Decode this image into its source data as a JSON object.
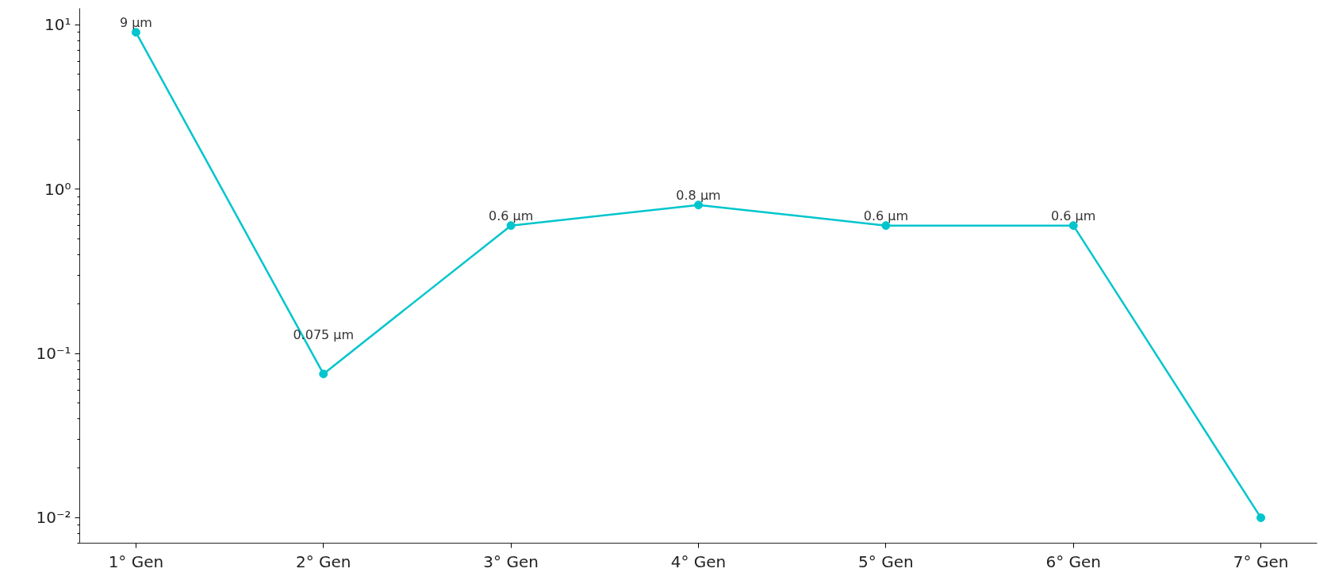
{
  "chart_data": {
    "type": "line",
    "categories": [
      "1° Gen",
      "2° Gen",
      "3° Gen",
      "4° Gen",
      "5° Gen",
      "6° Gen",
      "7° Gen"
    ],
    "series": [
      {
        "color": "#00c5cd",
        "values": [
          9,
          0.075,
          0.6,
          0.8,
          0.6,
          0.6,
          0.01
        ],
        "value_labels": [
          "9 µm",
          "0.075 µm",
          "0.6 µm",
          "0.8 µm",
          "0.6 µm",
          "0.6 µm",
          null
        ]
      }
    ],
    "log": "y",
    "ylim": [
      0.007,
      12.6
    ],
    "yticks": [
      {
        "value": 0.01,
        "label": "10⁻²"
      },
      {
        "value": 0.1,
        "label": "10⁻¹"
      },
      {
        "value": 1,
        "label": "10⁰"
      },
      {
        "value": 10,
        "label": "10¹"
      }
    ],
    "grid": false,
    "marker": "circle",
    "line_style": "solid"
  }
}
